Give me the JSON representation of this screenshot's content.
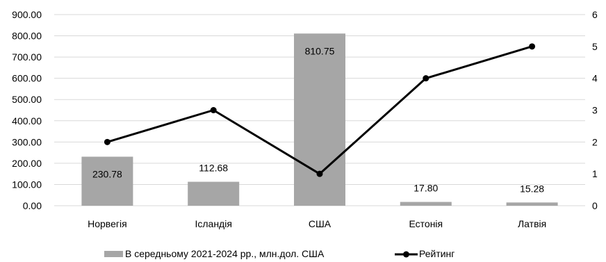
{
  "chart_data": {
    "type": "bar",
    "categories": [
      "Норвегія",
      "Ісландія",
      "США",
      "Естонія",
      "Латвія"
    ],
    "series": [
      {
        "name": "В середньому 2021-2024 рр.,  млн.дол. США",
        "type": "bar",
        "axis": "left",
        "values": [
          230.78,
          112.68,
          810.75,
          17.8,
          15.28
        ],
        "labels": [
          "230.78",
          "112.68",
          "810.75",
          "17.80",
          "15.28"
        ],
        "color": "#a6a6a6"
      },
      {
        "name": "Рейтинг",
        "type": "line",
        "axis": "right",
        "values": [
          2,
          3,
          1,
          4,
          5
        ],
        "color": "#000000"
      }
    ],
    "y_left": {
      "ylim": [
        0,
        900
      ],
      "ticks": [
        "0.00",
        "100.00",
        "200.00",
        "300.00",
        "400.00",
        "500.00",
        "600.00",
        "700.00",
        "800.00",
        "900.00"
      ]
    },
    "y_right": {
      "ylim": [
        0,
        6
      ],
      "ticks": [
        "0",
        "1",
        "2",
        "3",
        "4",
        "5",
        "6"
      ]
    },
    "grid": true,
    "legend": "bottom",
    "title": "",
    "xlabel": "",
    "ylabel": ""
  }
}
